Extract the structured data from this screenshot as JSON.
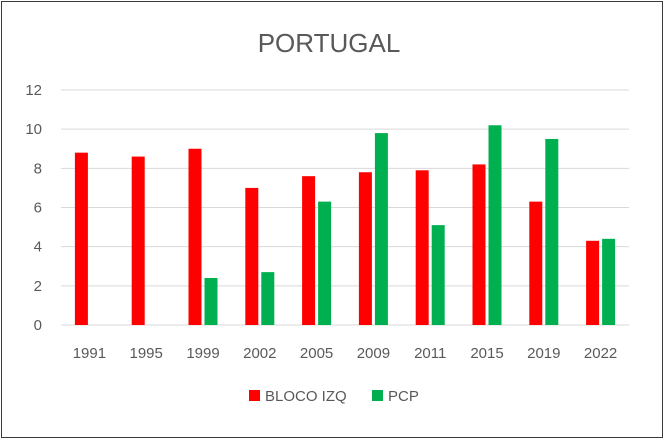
{
  "chart_data": {
    "type": "bar",
    "title": "PORTUGAL",
    "xlabel": "",
    "ylabel": "",
    "categories": [
      "1991",
      "1995",
      "1999",
      "2002",
      "2005",
      "2009",
      "2011",
      "2015",
      "2019",
      "2022"
    ],
    "series": [
      {
        "name": "BLOCO IZQ",
        "color": "#ff0000",
        "values": [
          8.8,
          8.6,
          9.0,
          7.0,
          7.6,
          7.8,
          7.9,
          8.2,
          6.3,
          4.3
        ]
      },
      {
        "name": "PCP",
        "color": "#00b050",
        "values": [
          null,
          null,
          2.4,
          2.7,
          6.3,
          9.8,
          5.1,
          10.2,
          9.5,
          4.4
        ]
      }
    ],
    "ylim": [
      0,
      12
    ],
    "yticks": [
      "0",
      "2",
      "4",
      "6",
      "8",
      "10",
      "12"
    ],
    "grid": true,
    "legend": "bottom"
  }
}
